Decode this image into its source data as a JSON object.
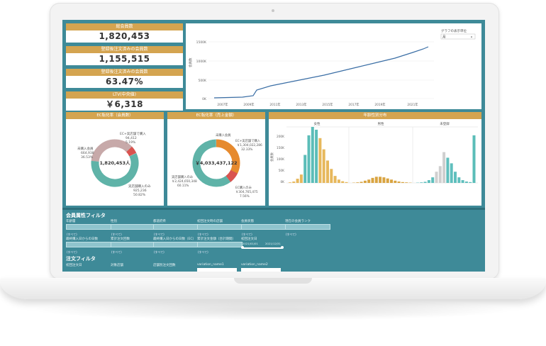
{
  "kpis": [
    {
      "label": "総会員数",
      "value": "1,820,453"
    },
    {
      "label": "登録後注文済みの会員数",
      "value": "1,155,515"
    },
    {
      "label": "登録後注文済みの会員数",
      "value": "63.47%"
    },
    {
      "label": "LTV(中央値)",
      "value": "￥6,318"
    }
  ],
  "line_chart": {
    "legend_label": "グラフの表示単位",
    "legend_select": "月",
    "ylabel": "会員数",
    "y_ticks": [
      "1500K",
      "1000K",
      "500K",
      "0K"
    ],
    "x_ticks": [
      "2007年",
      "2009年",
      "2011年",
      "2013年",
      "2015年",
      "2017年",
      "2019年",
      "2021年"
    ]
  },
  "donut1": {
    "title": "EC転化率（会員数）",
    "center": "1,820,453人",
    "labels": [
      {
        "name": "EC+実店舗で購入",
        "v1": "94,412",
        "v2": "5.19%"
      },
      {
        "name": "未購入会員",
        "v1": "664,938",
        "v2": "36.53%"
      },
      {
        "name": "実店舗購入のみ",
        "v1": "925,236",
        "v2": "50.82%"
      }
    ]
  },
  "donut2": {
    "title": "EC転化率（売上金額）",
    "center": "￥4,033,437,122",
    "labels": [
      {
        "name": "未購入会員",
        "v1": "",
        "v2": ""
      },
      {
        "name": "EC+実店舗で購入",
        "v1": "￥1,304,022,286",
        "v2": "32.33%"
      },
      {
        "name": "実店舗購入のみ",
        "v1": "￥2,424,650,348",
        "v2": "60.11%"
      },
      {
        "name": "EC購入のみ",
        "v1": "￥304,765,475",
        "v2": "7.56%"
      }
    ]
  },
  "age_chart": {
    "title": "年齢性別分布",
    "groups": [
      "女性",
      "男性",
      "未登録"
    ],
    "y_ticks": [
      "200K",
      "150K",
      "100K",
      "50K",
      "0K"
    ],
    "ylabel": "会員数"
  },
  "chart_data": [
    {
      "type": "line",
      "title": "",
      "x": [
        "2007年",
        "2009年",
        "2011年",
        "2013年",
        "2015年",
        "2017年",
        "2019年",
        "2021年"
      ],
      "series": [
        {
          "values": [
            20000,
            100000,
            480000,
            700000,
            900000,
            1100000,
            1300000,
            1500000
          ]
        }
      ],
      "ylim": [
        0,
        1700000
      ]
    },
    {
      "type": "pie",
      "title": "EC転化率（会員数）",
      "categories": [
        "EC+実店舗で購入",
        "未購入会員",
        "実店舗購入のみ"
      ],
      "values": [
        5.19,
        36.53,
        50.82
      ]
    },
    {
      "type": "pie",
      "title": "EC転化率（売上金額）",
      "categories": [
        "EC+実店舗で購入",
        "実店舗購入のみ",
        "EC購入のみ"
      ],
      "values": [
        32.33,
        60.11,
        7.56
      ]
    },
    {
      "type": "bar",
      "title": "年齢性別分布",
      "series": [
        {
          "name": "女性",
          "values": [
            2,
            5,
            15,
            30,
            100,
            170,
            200,
            190,
            160,
            120,
            80,
            50,
            25,
            12,
            6,
            3
          ]
        },
        {
          "name": "男性",
          "values": [
            1,
            2,
            4,
            8,
            12,
            18,
            22,
            22,
            20,
            16,
            12,
            8,
            5,
            3,
            2,
            1
          ]
        },
        {
          "name": "未登録",
          "values": [
            1,
            2,
            4,
            10,
            20,
            40,
            60,
            110,
            90,
            70,
            40,
            20,
            10,
            5,
            3,
            170
          ]
        }
      ],
      "ylim": [
        0,
        200
      ]
    }
  ],
  "filters": {
    "title": "会員属性フィルタ",
    "row1": [
      "年齢層",
      "性別",
      "都道府県",
      "初回注文時の店舗",
      "会員状態",
      "現在の会員ランク"
    ],
    "row2": [
      "最終購入日からの日数",
      "累計注文回数",
      "最終購入日からの日数（EC）",
      "累計注文金額（合計期間）",
      "初回注文日"
    ],
    "select_text": "(すべて)",
    "date_range": [
      "2021/01/01",
      "2021/12/31"
    ],
    "order_title": "注文フィルタ",
    "row3": [
      "初回注文日",
      "対象店舗",
      "店舗別注文回数",
      "variation_name1",
      "variation_name2"
    ]
  }
}
